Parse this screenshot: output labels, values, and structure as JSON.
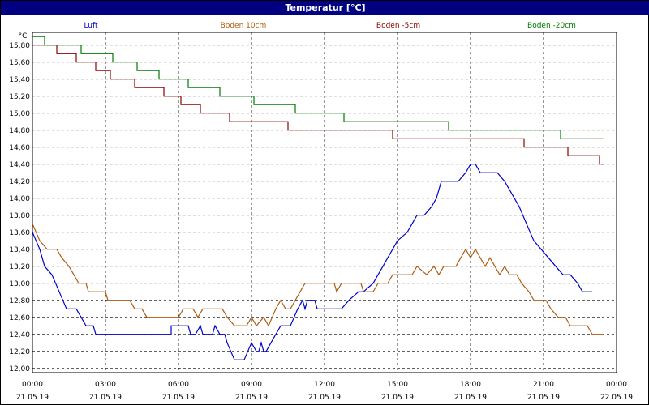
{
  "window": {
    "title": "Temperatur [°C]"
  },
  "chart_data": {
    "type": "line",
    "title": "Temperatur [°C]",
    "ylabel": "°C",
    "xlabel": "",
    "ylim": [
      11.95,
      15.95
    ],
    "xlim": [
      0,
      24
    ],
    "y_ticks": [
      "15,80",
      "15,60",
      "15,40",
      "15,20",
      "15,00",
      "14,80",
      "14,60",
      "14,40",
      "14,20",
      "14,00",
      "13,80",
      "13,60",
      "13,40",
      "13,20",
      "13,00",
      "12,80",
      "12,60",
      "12,40",
      "12,20",
      "12,00"
    ],
    "x_ticks": [
      {
        "time": "00:00",
        "date": "21.05.19"
      },
      {
        "time": "03:00",
        "date": "21.05.19"
      },
      {
        "time": "06:00",
        "date": "21.05.19"
      },
      {
        "time": "09:00",
        "date": "21.05.19"
      },
      {
        "time": "12:00",
        "date": "21.05.19"
      },
      {
        "time": "15:00",
        "date": "21.05.19"
      },
      {
        "time": "18:00",
        "date": "21.05.19"
      },
      {
        "time": "21:00",
        "date": "21.05.19"
      },
      {
        "time": "00:00",
        "date": "22.05.19"
      }
    ],
    "grid": true,
    "legend_position": "top",
    "series": [
      {
        "name": "Luft",
        "color": "#0000cc",
        "points": [
          [
            0,
            13.6
          ],
          [
            0.3,
            13.4
          ],
          [
            0.5,
            13.2
          ],
          [
            0.8,
            13.1
          ],
          [
            1.1,
            12.9
          ],
          [
            1.4,
            12.7
          ],
          [
            1.8,
            12.7
          ],
          [
            2.0,
            12.6
          ],
          [
            2.2,
            12.5
          ],
          [
            2.5,
            12.5
          ],
          [
            2.6,
            12.4
          ],
          [
            5.7,
            12.4
          ],
          [
            5.7,
            12.5
          ],
          [
            6.4,
            12.5
          ],
          [
            6.5,
            12.4
          ],
          [
            6.7,
            12.4
          ],
          [
            6.9,
            12.5
          ],
          [
            7.0,
            12.4
          ],
          [
            7.4,
            12.4
          ],
          [
            7.5,
            12.5
          ],
          [
            7.7,
            12.4
          ],
          [
            7.9,
            12.4
          ],
          [
            8.0,
            12.3
          ],
          [
            8.3,
            12.1
          ],
          [
            8.7,
            12.1
          ],
          [
            9.0,
            12.3
          ],
          [
            9.2,
            12.2
          ],
          [
            9.3,
            12.2
          ],
          [
            9.4,
            12.3
          ],
          [
            9.5,
            12.2
          ],
          [
            9.6,
            12.2
          ],
          [
            9.8,
            12.3
          ],
          [
            10.0,
            12.4
          ],
          [
            10.2,
            12.5
          ],
          [
            10.6,
            12.5
          ],
          [
            10.9,
            12.7
          ],
          [
            11.1,
            12.8
          ],
          [
            11.2,
            12.7
          ],
          [
            11.3,
            12.8
          ],
          [
            11.6,
            12.8
          ],
          [
            11.7,
            12.7
          ],
          [
            12.7,
            12.7
          ],
          [
            13.0,
            12.8
          ],
          [
            13.4,
            12.9
          ],
          [
            13.6,
            12.9
          ],
          [
            14.0,
            13.0
          ],
          [
            14.2,
            13.1
          ],
          [
            14.4,
            13.2
          ],
          [
            14.6,
            13.3
          ],
          [
            15.0,
            13.5
          ],
          [
            15.4,
            13.6
          ],
          [
            15.8,
            13.8
          ],
          [
            16.1,
            13.8
          ],
          [
            16.4,
            13.9
          ],
          [
            16.6,
            14.0
          ],
          [
            16.8,
            14.2
          ],
          [
            17.2,
            14.2
          ],
          [
            17.5,
            14.2
          ],
          [
            17.8,
            14.3
          ],
          [
            18.0,
            14.4
          ],
          [
            18.2,
            14.4
          ],
          [
            18.4,
            14.3
          ],
          [
            19.1,
            14.3
          ],
          [
            19.4,
            14.2
          ],
          [
            19.6,
            14.1
          ],
          [
            20.0,
            13.9
          ],
          [
            20.3,
            13.7
          ],
          [
            20.6,
            13.5
          ],
          [
            20.9,
            13.4
          ],
          [
            21.2,
            13.3
          ],
          [
            21.5,
            13.2
          ],
          [
            21.8,
            13.1
          ],
          [
            22.1,
            13.1
          ],
          [
            22.4,
            13.0
          ],
          [
            22.6,
            12.9
          ],
          [
            23.0,
            12.9
          ]
        ]
      },
      {
        "name": "Boden 10cm",
        "color": "#b05c10",
        "points": [
          [
            0,
            13.7
          ],
          [
            0.3,
            13.5
          ],
          [
            0.6,
            13.4
          ],
          [
            1.0,
            13.4
          ],
          [
            1.2,
            13.3
          ],
          [
            1.5,
            13.2
          ],
          [
            1.7,
            13.1
          ],
          [
            1.9,
            13.0
          ],
          [
            2.2,
            13.0
          ],
          [
            2.3,
            12.9
          ],
          [
            3.0,
            12.9
          ],
          [
            3.1,
            12.8
          ],
          [
            4.0,
            12.8
          ],
          [
            4.2,
            12.7
          ],
          [
            4.5,
            12.7
          ],
          [
            4.7,
            12.6
          ],
          [
            6.0,
            12.6
          ],
          [
            6.2,
            12.7
          ],
          [
            6.6,
            12.7
          ],
          [
            6.8,
            12.6
          ],
          [
            7.0,
            12.7
          ],
          [
            7.8,
            12.7
          ],
          [
            8.0,
            12.6
          ],
          [
            8.3,
            12.5
          ],
          [
            8.8,
            12.5
          ],
          [
            9.0,
            12.6
          ],
          [
            9.2,
            12.5
          ],
          [
            9.5,
            12.6
          ],
          [
            9.7,
            12.5
          ],
          [
            10.0,
            12.7
          ],
          [
            10.2,
            12.8
          ],
          [
            10.4,
            12.7
          ],
          [
            10.6,
            12.7
          ],
          [
            10.8,
            12.8
          ],
          [
            11.0,
            12.9
          ],
          [
            11.2,
            13.0
          ],
          [
            12.4,
            13.0
          ],
          [
            12.5,
            12.9
          ],
          [
            12.7,
            13.0
          ],
          [
            13.5,
            13.0
          ],
          [
            13.6,
            12.9
          ],
          [
            14.0,
            12.9
          ],
          [
            14.2,
            13.0
          ],
          [
            14.6,
            13.0
          ],
          [
            14.8,
            13.1
          ],
          [
            15.6,
            13.1
          ],
          [
            15.8,
            13.2
          ],
          [
            16.2,
            13.1
          ],
          [
            16.5,
            13.2
          ],
          [
            16.7,
            13.1
          ],
          [
            16.9,
            13.2
          ],
          [
            17.4,
            13.2
          ],
          [
            17.6,
            13.3
          ],
          [
            17.8,
            13.4
          ],
          [
            18.0,
            13.3
          ],
          [
            18.2,
            13.4
          ],
          [
            18.4,
            13.3
          ],
          [
            18.6,
            13.2
          ],
          [
            18.8,
            13.3
          ],
          [
            19.0,
            13.2
          ],
          [
            19.2,
            13.1
          ],
          [
            19.4,
            13.2
          ],
          [
            19.6,
            13.1
          ],
          [
            19.9,
            13.1
          ],
          [
            20.1,
            13.0
          ],
          [
            20.4,
            12.9
          ],
          [
            20.6,
            12.8
          ],
          [
            21.1,
            12.8
          ],
          [
            21.3,
            12.7
          ],
          [
            21.6,
            12.6
          ],
          [
            21.9,
            12.6
          ],
          [
            22.1,
            12.5
          ],
          [
            22.8,
            12.5
          ],
          [
            23.0,
            12.4
          ],
          [
            23.5,
            12.4
          ]
        ]
      },
      {
        "name": "Boden -5cm",
        "color": "#8b0000",
        "points": [
          [
            0,
            15.8
          ],
          [
            1.0,
            15.8
          ],
          [
            1.0,
            15.7
          ],
          [
            1.8,
            15.7
          ],
          [
            1.8,
            15.6
          ],
          [
            2.6,
            15.6
          ],
          [
            2.6,
            15.5
          ],
          [
            3.2,
            15.5
          ],
          [
            3.2,
            15.4
          ],
          [
            4.2,
            15.4
          ],
          [
            4.2,
            15.3
          ],
          [
            5.4,
            15.3
          ],
          [
            5.4,
            15.2
          ],
          [
            6.1,
            15.2
          ],
          [
            6.1,
            15.1
          ],
          [
            6.9,
            15.1
          ],
          [
            6.9,
            15.0
          ],
          [
            8.1,
            15.0
          ],
          [
            8.1,
            14.9
          ],
          [
            10.5,
            14.9
          ],
          [
            10.5,
            14.8
          ],
          [
            14.8,
            14.8
          ],
          [
            14.8,
            14.7
          ],
          [
            20.2,
            14.7
          ],
          [
            20.2,
            14.6
          ],
          [
            22.0,
            14.6
          ],
          [
            22.0,
            14.5
          ],
          [
            23.3,
            14.5
          ],
          [
            23.3,
            14.4
          ],
          [
            23.5,
            14.4
          ]
        ]
      },
      {
        "name": "Boden -20cm",
        "color": "#007a00",
        "points": [
          [
            0,
            15.9
          ],
          [
            0.5,
            15.9
          ],
          [
            0.5,
            15.8
          ],
          [
            2.0,
            15.8
          ],
          [
            2.0,
            15.7
          ],
          [
            3.3,
            15.7
          ],
          [
            3.3,
            15.6
          ],
          [
            4.3,
            15.6
          ],
          [
            4.3,
            15.5
          ],
          [
            5.2,
            15.5
          ],
          [
            5.2,
            15.4
          ],
          [
            6.4,
            15.4
          ],
          [
            6.4,
            15.3
          ],
          [
            7.7,
            15.3
          ],
          [
            7.7,
            15.2
          ],
          [
            9.1,
            15.2
          ],
          [
            9.1,
            15.1
          ],
          [
            10.8,
            15.1
          ],
          [
            10.8,
            15.0
          ],
          [
            12.8,
            15.0
          ],
          [
            12.8,
            14.9
          ],
          [
            17.1,
            14.9
          ],
          [
            17.1,
            14.8
          ],
          [
            21.7,
            14.8
          ],
          [
            21.7,
            14.7
          ],
          [
            23.5,
            14.7
          ]
        ]
      }
    ]
  }
}
